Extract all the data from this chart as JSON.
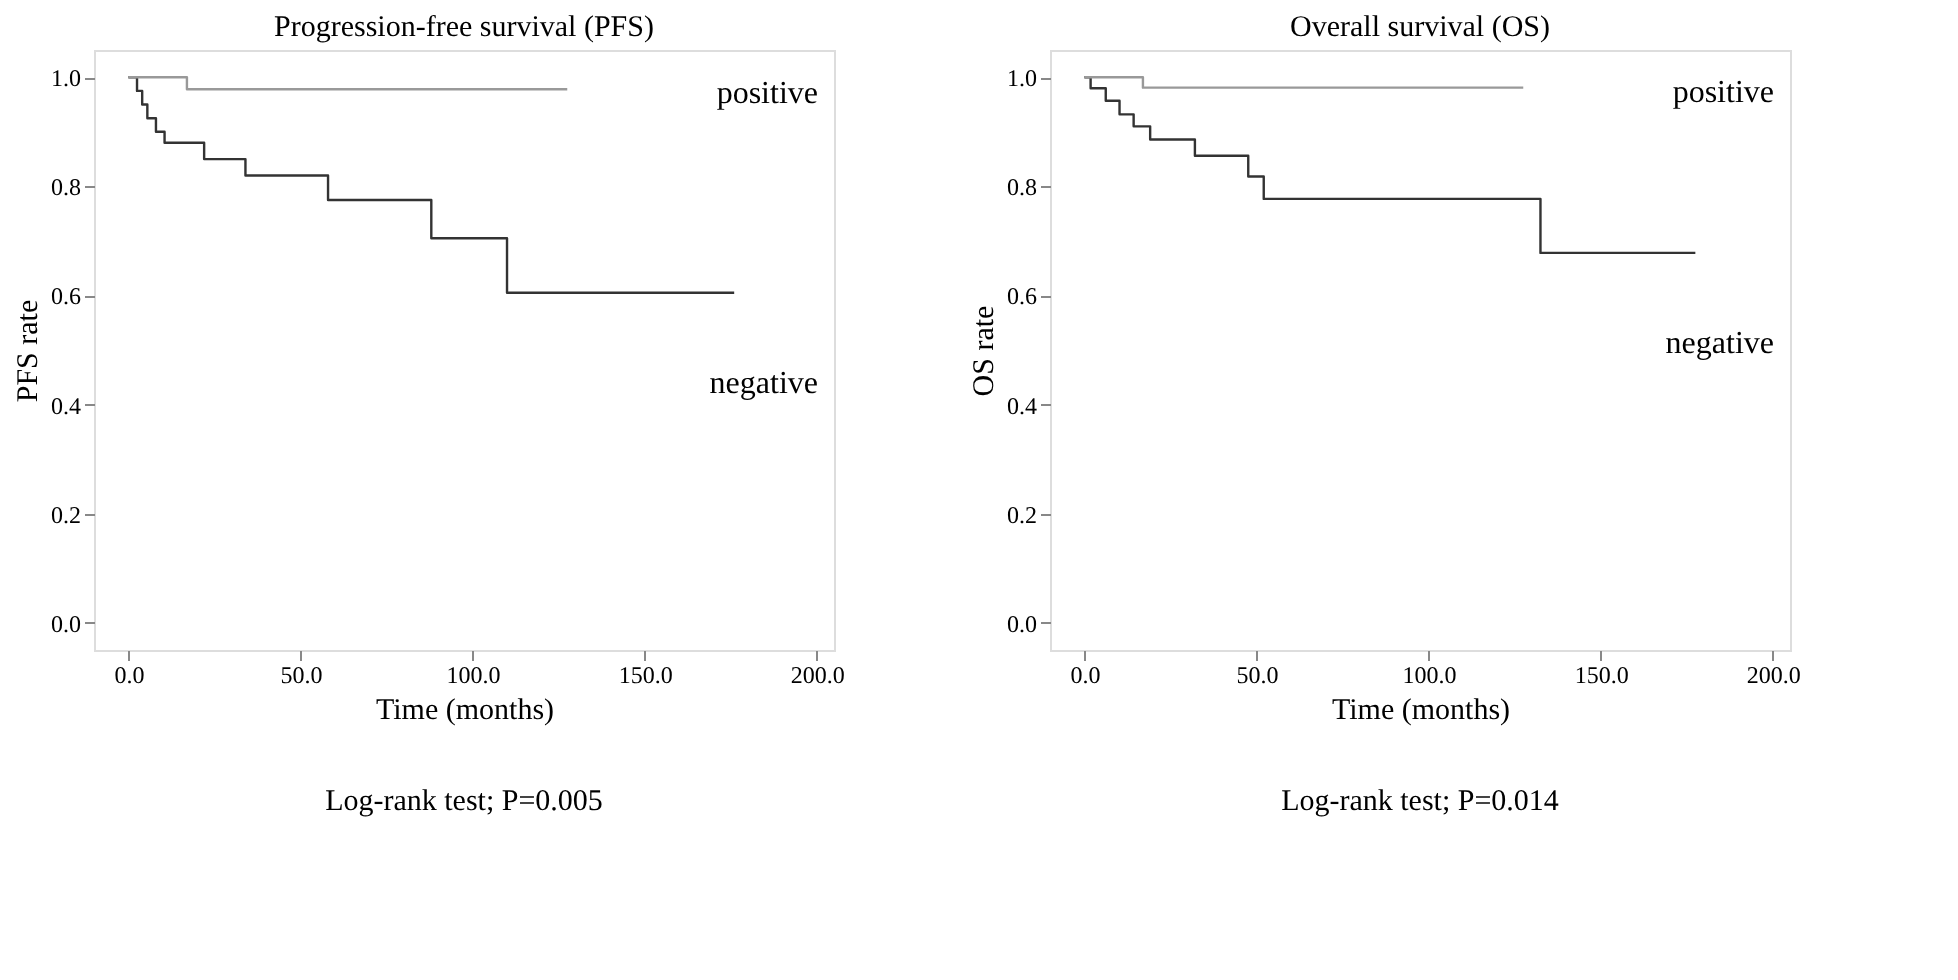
{
  "chart_data": [
    {
      "type": "step",
      "title": "Progression-free survival (PFS)",
      "xlabel": "Time (months)",
      "ylabel": "PFS rate",
      "xlim": [
        -10,
        205
      ],
      "ylim": [
        -0.05,
        1.05
      ],
      "xticks": [
        {
          "value": 0,
          "label": "0.0"
        },
        {
          "value": 50,
          "label": "50.0"
        },
        {
          "value": 100,
          "label": "100.0"
        },
        {
          "value": 150,
          "label": "150.0"
        },
        {
          "value": 200,
          "label": "200.0"
        }
      ],
      "yticks": [
        {
          "value": 0,
          "label": "0.0"
        },
        0.2,
        0.4,
        0.6,
        0.8,
        {
          "value": 1,
          "label": "1.0"
        }
      ],
      "annotations": [
        "Log-rank test; P=0.005"
      ],
      "series": [
        {
          "name": "negative",
          "color": "#333333",
          "x": [
            0,
            2.5,
            4,
            5.5,
            8,
            10.5,
            22,
            34,
            58,
            88,
            110,
            176
          ],
          "values": [
            1,
            0.975,
            0.95,
            0.925,
            0.9,
            0.88,
            0.85,
            0.82,
            0.775,
            0.705,
            0.605,
            0.605
          ]
        },
        {
          "name": "positive",
          "color": "#999999",
          "x": [
            0,
            17,
            127.5
          ],
          "values": [
            1,
            0.978,
            0.978
          ]
        }
      ]
    },
    {
      "type": "step",
      "title": "Overall survival (OS)",
      "xlabel": "Time (months)",
      "ylabel": "OS rate",
      "xlim": [
        -10,
        205
      ],
      "ylim": [
        -0.05,
        1.05
      ],
      "xticks": [
        {
          "value": 0,
          "label": "0.0"
        },
        {
          "value": 50,
          "label": "50.0"
        },
        {
          "value": 100,
          "label": "100.0"
        },
        {
          "value": 150,
          "label": "150.0"
        },
        {
          "value": 200,
          "label": "200.0"
        }
      ],
      "yticks": [
        {
          "value": 0,
          "label": "0.0"
        },
        0.2,
        0.4,
        0.6,
        0.8,
        {
          "value": 1,
          "label": "1.0"
        }
      ],
      "annotations": [
        "Log-rank test; P=0.014"
      ],
      "series": [
        {
          "name": "negative",
          "color": "#333333",
          "x": [
            0,
            1.8,
            6.2,
            10.2,
            14.3,
            19.1,
            32.1,
            47.6,
            52.1,
            132.5,
            177.5
          ],
          "values": [
            1,
            0.98,
            0.957,
            0.932,
            0.91,
            0.886,
            0.856,
            0.818,
            0.777,
            0.678,
            0.678
          ]
        },
        {
          "name": "positive",
          "color": "#999999",
          "x": [
            0,
            17,
            127.5
          ],
          "values": [
            1,
            0.981,
            0.981
          ]
        }
      ]
    }
  ]
}
